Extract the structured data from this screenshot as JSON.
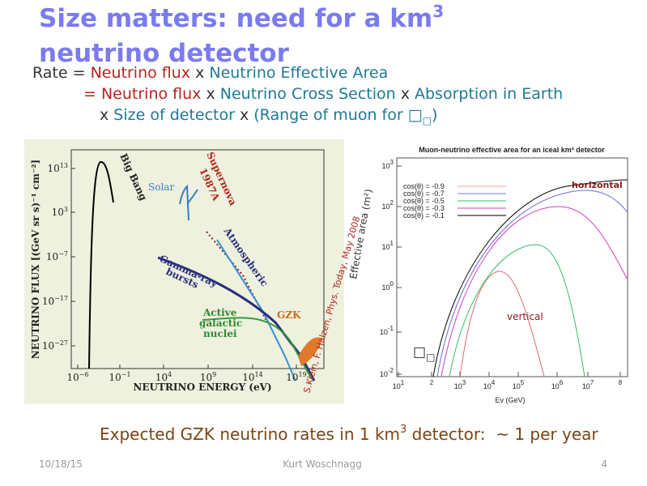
{
  "title": {
    "line1": "Size matters: need for a km",
    "sup": "3",
    "line2": "neutrino detector"
  },
  "formula": {
    "line1": [
      "Rate = ",
      "Neutrino flux",
      " x ",
      "Neutrino Effective Area"
    ],
    "line2": [
      "= ",
      "Neutrino flux",
      " x ",
      "Neutrino Cross Section",
      " x ",
      "Absorption in Earth"
    ],
    "line3": [
      "x ",
      "Size of detector",
      " x ",
      "(Range of muon for ",
      "□",
      "□",
      ")"
    ]
  },
  "left_figure": {
    "y_label": "NEUTRINO FLUX [(GeV sr s)⁻¹ cm⁻²]",
    "x_label": "NEUTRINO ENERGY (eV)",
    "yticks": [
      {
        "base": "10",
        "exp": "13"
      },
      {
        "base": "10",
        "exp": "3"
      },
      {
        "base": "10",
        "exp": "−7"
      },
      {
        "base": "10",
        "exp": "−17"
      },
      {
        "base": "10",
        "exp": "−27"
      }
    ],
    "xticks": [
      {
        "base": "10",
        "exp": "−6"
      },
      {
        "base": "10",
        "exp": "−1"
      },
      {
        "base": "10",
        "exp": "4"
      },
      {
        "base": "10",
        "exp": "9"
      },
      {
        "base": "10",
        "exp": "14"
      },
      {
        "base": "10",
        "exp": "19"
      }
    ],
    "labels": {
      "big_bang": "Big Bang",
      "solar": "Solar",
      "supernova": [
        "Supernova",
        "1987A"
      ],
      "atmospheric": "Atmospheric",
      "grb": [
        "Gamma-ray",
        "bursts"
      ],
      "agn": [
        "Active",
        "galactic",
        "nuclei"
      ],
      "gzk": "GZK"
    }
  },
  "credit": "S.Klein, F. Halzen, Phys. Today, May 2008",
  "right_figure": {
    "title": "Muon-neutrino effective area for an iceal km³ detector",
    "y_label": "Effective area (m²)",
    "x_label": "Eν (GeV)",
    "legend": [
      "cos(θ) = -0.9",
      "cos(θ) = -0.7",
      "cos(θ) = -0.5",
      "cos(θ) = -0.3",
      "cos(θ) = -0.1"
    ],
    "yticks": [
      {
        "base": "10",
        "exp": "3"
      },
      {
        "base": "10",
        "exp": "2"
      },
      {
        "base": "10",
        "exp": "1"
      },
      {
        "base": "10",
        "exp": "0"
      },
      {
        "base": "10",
        "exp": "-1"
      },
      {
        "base": "10",
        "exp": "-2"
      }
    ],
    "xticks": [
      {
        "base": "10",
        "exp": "1"
      },
      {
        "base": "",
        "exp": "2"
      },
      {
        "base": "10",
        "exp": "3"
      },
      {
        "base": "10",
        "exp": "4"
      },
      {
        "base": "10",
        "exp": "5"
      },
      {
        "base": "10",
        "exp": "6"
      },
      {
        "base": "10",
        "exp": "7"
      },
      {
        "base": "",
        "exp": "8"
      }
    ],
    "horizontal": "horizontal",
    "vertical": "vertical",
    "symbol": [
      "□",
      "□"
    ]
  },
  "summary": {
    "text": "Expected GZK neutrino rates in 1 km",
    "sup": "3",
    "rest": " detector:  ~ 1 per year"
  },
  "footer": {
    "date": "10/18/15",
    "author": "Kurt Woschnagg",
    "page": "4"
  }
}
